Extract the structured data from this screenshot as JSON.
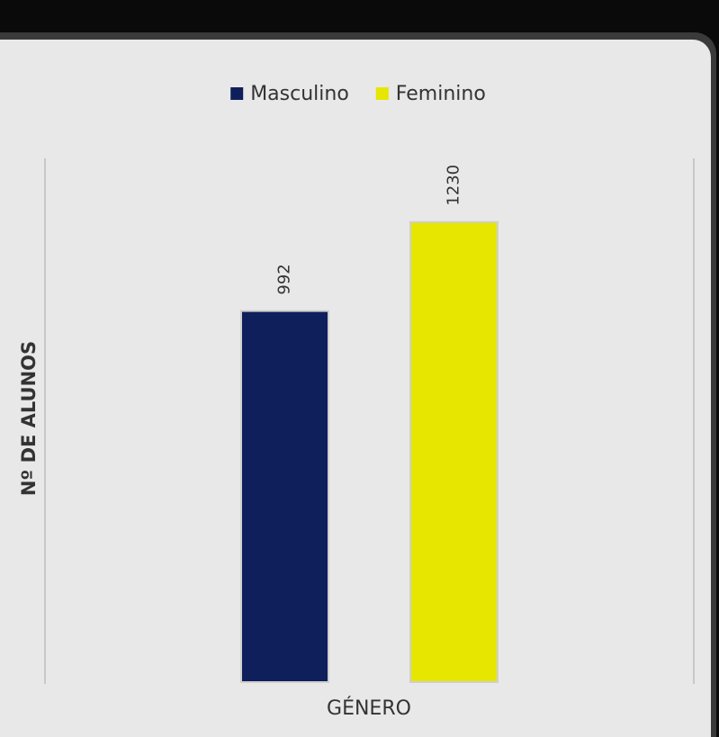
{
  "chart_data": {
    "type": "bar",
    "categories": [
      null
    ],
    "series": [
      {
        "name": "Masculino",
        "color": "#0f1f5c",
        "values": [
          992
        ]
      },
      {
        "name": "Feminino",
        "color": "#e6e600",
        "values": [
          1230
        ]
      }
    ],
    "xlabel": "GÉNERO",
    "ylabel": "Nº DE ALUNOS",
    "ylim": [
      0,
      1400
    ],
    "legend": "top"
  }
}
